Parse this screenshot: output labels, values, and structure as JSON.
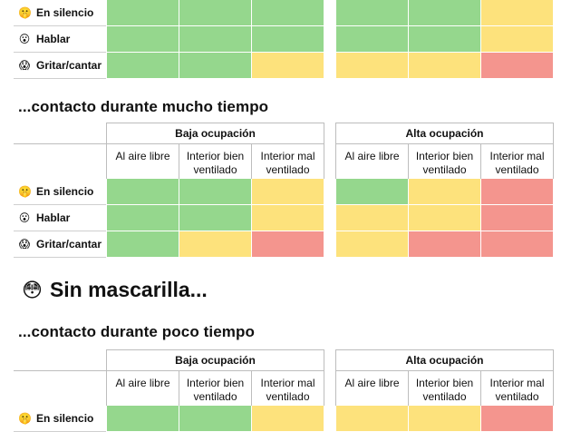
{
  "group_labels": {
    "low": "Baja ocupación",
    "high": "Alta ocupación"
  },
  "column_labels": [
    "Al aire libre",
    "Interior bien ventilado",
    "Interior mal ventilado"
  ],
  "row_labels": [
    {
      "emoji": "🤫",
      "label": "En silencio"
    },
    {
      "emoji": "😮",
      "label": "Hablar"
    },
    {
      "emoji": "😱",
      "label": "Gritar/cantar"
    }
  ],
  "top_block": {
    "rows": [
      [
        "green",
        "green",
        "green",
        "green",
        "green",
        "yellow"
      ],
      [
        "green",
        "green",
        "green",
        "green",
        "green",
        "yellow"
      ],
      [
        "green",
        "green",
        "yellow",
        "yellow",
        "yellow",
        "red"
      ]
    ]
  },
  "section_long": {
    "heading": "...contacto durante mucho tiempo",
    "rows": [
      [
        "green",
        "green",
        "yellow",
        "green",
        "yellow",
        "red"
      ],
      [
        "green",
        "green",
        "yellow",
        "yellow",
        "yellow",
        "red"
      ],
      [
        "green",
        "yellow",
        "red",
        "yellow",
        "red",
        "red"
      ]
    ]
  },
  "no_mask_title": {
    "emoji": "😳",
    "text": "Sin mascarilla..."
  },
  "section_short": {
    "heading": "...contacto durante poco tiempo",
    "rows": [
      [
        "green",
        "green",
        "yellow",
        "yellow",
        "yellow",
        "red"
      ]
    ]
  },
  "colors": {
    "green": "#95d78d",
    "yellow": "#fde27c",
    "red": "#f4958e"
  }
}
